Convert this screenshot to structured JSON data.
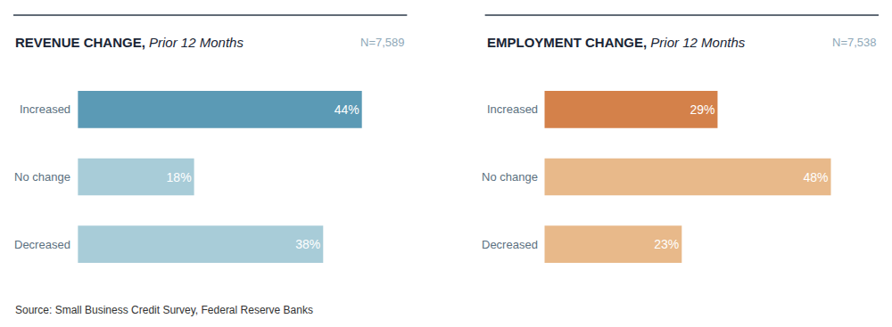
{
  "chart_data": [
    {
      "type": "bar",
      "orientation": "horizontal",
      "title": "REVENUE CHANGE,",
      "subtitle": "Prior 12 Months",
      "categories": [
        "Increased",
        "No change",
        "Decreased"
      ],
      "values": [
        44,
        18,
        38
      ],
      "value_labels": [
        "44%",
        "18%",
        "38%"
      ],
      "colors": [
        "#5b9ab5",
        "#a8ccd8",
        "#a8ccd8"
      ],
      "xlim": [
        -10,
        51
      ],
      "data_labels": true,
      "tick_labels": false,
      "grid": false,
      "annotations": [
        "N=7,589",
        "Source: Small Business Credit Survey, Federal Reserve Banks"
      ]
    },
    {
      "type": "bar",
      "orientation": "horizontal",
      "title": "EMPLOYMENT CHANGE,",
      "subtitle": "Prior 12 Months",
      "categories": [
        "Increased",
        "No change",
        "Decreased"
      ],
      "values": [
        29,
        48,
        23
      ],
      "value_labels": [
        "29%",
        "48%",
        "23%"
      ],
      "colors": [
        "#d4814a",
        "#e8b98a",
        "#e8b98a"
      ],
      "xlim": [
        -10,
        56
      ],
      "data_labels": true,
      "tick_labels": false,
      "grid": false,
      "annotations": [
        "N=7,538"
      ]
    }
  ]
}
